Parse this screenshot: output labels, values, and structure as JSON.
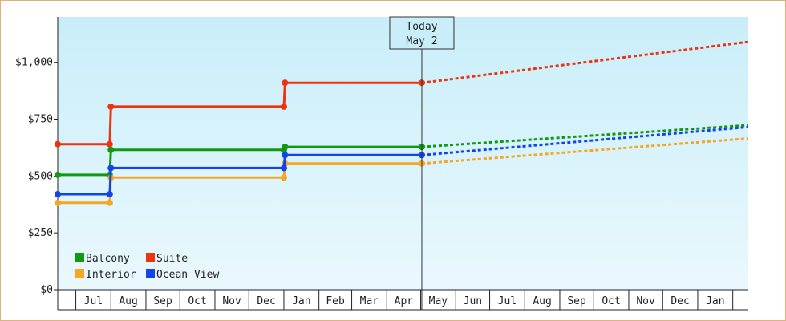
{
  "chart_data": {
    "type": "line",
    "x_start": "2023-06-15",
    "x_end": "2025-02-14",
    "ylim": [
      0,
      1200
    ],
    "y_ticks": [
      {
        "value": 0,
        "label": "$0"
      },
      {
        "value": 250,
        "label": "$250"
      },
      {
        "value": 500,
        "label": "$500"
      },
      {
        "value": 750,
        "label": "$750"
      },
      {
        "value": 1000,
        "label": "$1,000"
      }
    ],
    "months": [
      {
        "label": "",
        "start": "2023-06-15",
        "end": "2023-07-01"
      },
      {
        "label": "Jul",
        "start": "2023-07-01",
        "end": "2023-08-01"
      },
      {
        "label": "Aug",
        "start": "2023-08-01",
        "end": "2023-09-01"
      },
      {
        "label": "Sep",
        "start": "2023-09-01",
        "end": "2023-10-01"
      },
      {
        "label": "Oct",
        "start": "2023-10-01",
        "end": "2023-11-01"
      },
      {
        "label": "Nov",
        "start": "2023-11-01",
        "end": "2023-12-01"
      },
      {
        "label": "Dec",
        "start": "2023-12-01",
        "end": "2024-01-01"
      },
      {
        "label": "Jan",
        "start": "2024-01-01",
        "end": "2024-02-01"
      },
      {
        "label": "Feb",
        "start": "2024-02-01",
        "end": "2024-03-01"
      },
      {
        "label": "Mar",
        "start": "2024-03-01",
        "end": "2024-04-01"
      },
      {
        "label": "Apr",
        "start": "2024-04-01",
        "end": "2024-05-01"
      },
      {
        "label": "May",
        "start": "2024-05-01",
        "end": "2024-06-01"
      },
      {
        "label": "Jun",
        "start": "2024-06-01",
        "end": "2024-07-01"
      },
      {
        "label": "Jul",
        "start": "2024-07-01",
        "end": "2024-08-01"
      },
      {
        "label": "Aug",
        "start": "2024-08-01",
        "end": "2024-09-01"
      },
      {
        "label": "Sep",
        "start": "2024-09-01",
        "end": "2024-10-01"
      },
      {
        "label": "Oct",
        "start": "2024-10-01",
        "end": "2024-11-01"
      },
      {
        "label": "Nov",
        "start": "2024-11-01",
        "end": "2024-12-01"
      },
      {
        "label": "Dec",
        "start": "2024-12-01",
        "end": "2025-01-01"
      },
      {
        "label": "Jan",
        "start": "2025-01-01",
        "end": "2025-02-01"
      },
      {
        "label": "",
        "start": "2025-02-01",
        "end": "2025-02-14"
      }
    ],
    "today": {
      "date": "2024-05-02",
      "line1": "Today",
      "line2": "May 2"
    },
    "series": [
      {
        "name": "Balcony",
        "color": "#119911",
        "points": [
          {
            "date": "2023-06-15",
            "value": 505
          },
          {
            "date": "2023-07-31",
            "value": 505
          },
          {
            "date": "2023-08-01",
            "value": 615
          },
          {
            "date": "2024-01-01",
            "value": 615
          },
          {
            "date": "2024-01-02",
            "value": 628
          },
          {
            "date": "2024-05-02",
            "value": 628
          }
        ],
        "forecast": [
          {
            "date": "2024-05-02",
            "value": 628
          },
          {
            "date": "2025-02-14",
            "value": 723
          }
        ]
      },
      {
        "name": "Suite",
        "color": "#ee3311",
        "points": [
          {
            "date": "2023-06-15",
            "value": 640
          },
          {
            "date": "2023-07-31",
            "value": 640
          },
          {
            "date": "2023-08-01",
            "value": 805
          },
          {
            "date": "2024-01-01",
            "value": 805
          },
          {
            "date": "2024-01-02",
            "value": 910
          },
          {
            "date": "2024-05-02",
            "value": 910
          }
        ],
        "forecast": [
          {
            "date": "2024-05-02",
            "value": 910
          },
          {
            "date": "2025-02-14",
            "value": 1090
          }
        ]
      },
      {
        "name": "Interior",
        "color": "#f5a623",
        "points": [
          {
            "date": "2023-06-15",
            "value": 382
          },
          {
            "date": "2023-07-31",
            "value": 382
          },
          {
            "date": "2023-08-01",
            "value": 493
          },
          {
            "date": "2024-01-01",
            "value": 493
          },
          {
            "date": "2024-01-02",
            "value": 555
          },
          {
            "date": "2024-05-02",
            "value": 555
          }
        ],
        "forecast": [
          {
            "date": "2024-05-02",
            "value": 555
          },
          {
            "date": "2025-02-14",
            "value": 665
          }
        ]
      },
      {
        "name": "Ocean View",
        "color": "#1144ee",
        "points": [
          {
            "date": "2023-06-15",
            "value": 420
          },
          {
            "date": "2023-07-31",
            "value": 420
          },
          {
            "date": "2023-08-01",
            "value": 535
          },
          {
            "date": "2024-01-01",
            "value": 535
          },
          {
            "date": "2024-01-02",
            "value": 592
          },
          {
            "date": "2024-05-02",
            "value": 592
          }
        ],
        "forecast": [
          {
            "date": "2024-05-02",
            "value": 592
          },
          {
            "date": "2025-02-14",
            "value": 715
          }
        ]
      }
    ],
    "legend": {
      "placement": "bottom-left",
      "order": [
        "Balcony",
        "Suite",
        "Interior",
        "Ocean View"
      ]
    },
    "colors": {
      "plot_bg_top": "#c9eef9",
      "plot_bg_bottom": "#eaf8fd",
      "frame_border": "#e2b177"
    }
  }
}
